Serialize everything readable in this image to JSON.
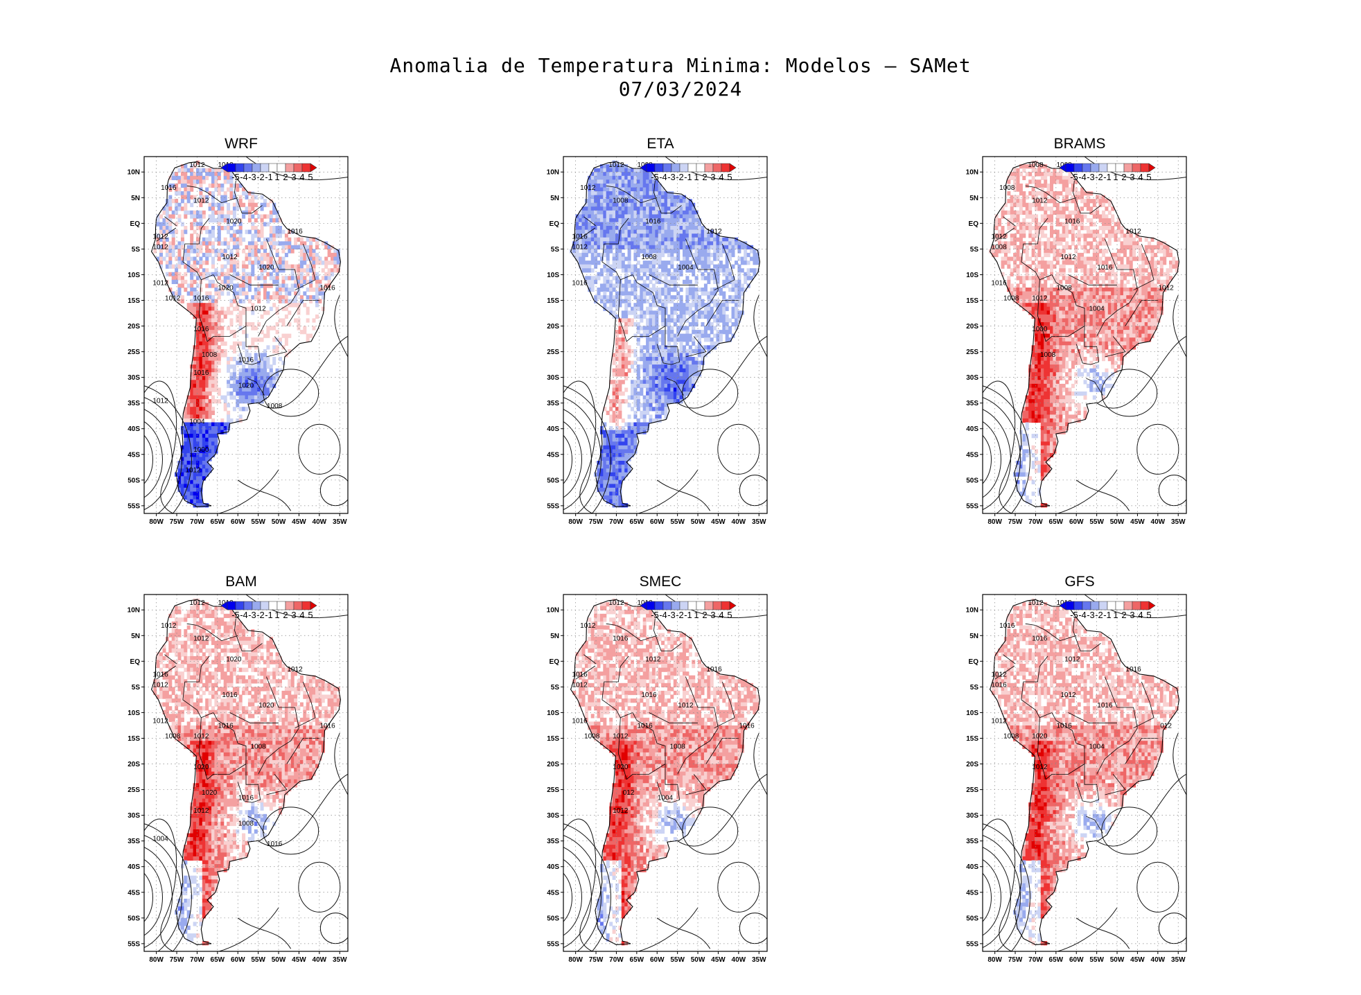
{
  "figure": {
    "title_line1": "Anomalia de Temperatura Minima: Modelos – SAMet",
    "title_line2": "07/03/2024"
  },
  "axes": {
    "lat_labels": [
      "10N",
      "5N",
      "EQ",
      "5S",
      "10S",
      "15S",
      "20S",
      "25S",
      "30S",
      "35S",
      "40S",
      "45S",
      "50S",
      "55S"
    ],
    "lon_labels": [
      "80W",
      "75W",
      "70W",
      "65W",
      "60W",
      "55W",
      "50W",
      "45W",
      "40W",
      "35W"
    ]
  },
  "colorbar": {
    "labels": [
      "-5",
      "-4",
      "-3",
      "-2",
      "-1",
      "1",
      "2",
      "3",
      "4",
      "5"
    ],
    "colors": [
      "#0000ee",
      "#3344ee",
      "#6677ee",
      "#99aaee",
      "#ccd4f4",
      "#ffffff",
      "#ffffff",
      "#f9d0d0",
      "#f4a0a0",
      "#ee6666",
      "#ee3333",
      "#e10000"
    ]
  },
  "panels": [
    {
      "id": "wrf",
      "title": "WRF",
      "dominant": "mixed",
      "isobars": [
        "1012",
        "1012",
        "1016",
        "1012",
        "1020",
        "1012",
        "1012",
        "1012",
        "1020",
        "1016",
        "1012",
        "1012",
        "1016",
        "1020",
        "1016",
        "1012",
        "1016",
        "1008",
        "1016",
        "1016",
        "1020",
        "1012",
        "1008",
        "1004",
        "1000",
        "1012"
      ]
    },
    {
      "id": "eta",
      "title": "ETA",
      "dominant": "cold",
      "isobars": [
        "1012",
        "1008",
        "1012",
        "1008",
        "1016",
        "1016",
        "1012",
        "1008",
        "1004",
        "1012",
        "1016"
      ]
    },
    {
      "id": "brams",
      "title": "BRAMS",
      "dominant": "warm",
      "isobars": [
        "1008",
        "1008",
        "1008",
        "1012",
        "1016",
        "1012",
        "1008",
        "1012",
        "1016",
        "1012",
        "1016",
        "1008",
        "1012",
        "1008",
        "1012",
        "1004",
        "1000",
        "1008"
      ]
    },
    {
      "id": "bam",
      "title": "BAM",
      "dominant": "warm",
      "isobars": [
        "1012",
        "1012",
        "1012",
        "1012",
        "1020",
        "1016",
        "1012",
        "1016",
        "1020",
        "1012",
        "1012",
        "1008",
        "1012",
        "1016",
        "1016",
        "1008",
        "1020",
        "1020",
        "1016",
        "1012",
        "1008",
        "1004",
        "1016"
      ]
    },
    {
      "id": "smec",
      "title": "SMEC",
      "dominant": "warm",
      "isobars": [
        "1012",
        "1012",
        "1012",
        "1016",
        "1012",
        "1016",
        "1012",
        "1016",
        "1012",
        "1016",
        "1016",
        "1008",
        "1012",
        "1016",
        "1016",
        "1008",
        "1020",
        "012",
        "1004",
        "1012"
      ]
    },
    {
      "id": "gfs",
      "title": "GFS",
      "dominant": "warm",
      "isobars": [
        "1012",
        "1012",
        "1016",
        "1016",
        "1012",
        "1012",
        "1016",
        "1012",
        "1016",
        "1016",
        "1012",
        "1008",
        "1020",
        "1016",
        "012",
        "1004",
        "1012"
      ]
    }
  ]
}
